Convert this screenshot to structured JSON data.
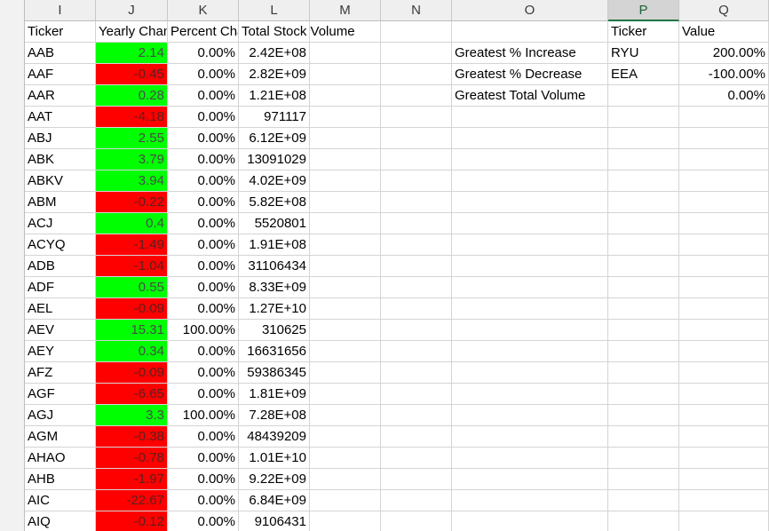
{
  "columns": [
    "I",
    "J",
    "K",
    "L",
    "M",
    "N",
    "O",
    "P",
    "Q"
  ],
  "selected_column": "P",
  "headers": {
    "ticker": "Ticker",
    "yearly_change": "Yearly Change",
    "percent_change": "Percent Change",
    "total_volume": "Total Stock Volume",
    "summary_ticker": "Ticker",
    "summary_value": "Value"
  },
  "rows": [
    {
      "ticker": "AAB",
      "change": "2.14",
      "sign": "pos",
      "percent": "0.00%",
      "volume": "2.42E+08"
    },
    {
      "ticker": "AAF",
      "change": "-0.45",
      "sign": "neg",
      "percent": "0.00%",
      "volume": "2.82E+09"
    },
    {
      "ticker": "AAR",
      "change": "0.28",
      "sign": "pos",
      "percent": "0.00%",
      "volume": "1.21E+08"
    },
    {
      "ticker": "AAT",
      "change": "-4.18",
      "sign": "neg",
      "percent": "0.00%",
      "volume": "971117"
    },
    {
      "ticker": "ABJ",
      "change": "2.55",
      "sign": "pos",
      "percent": "0.00%",
      "volume": "6.12E+09"
    },
    {
      "ticker": "ABK",
      "change": "3.79",
      "sign": "pos",
      "percent": "0.00%",
      "volume": "13091029"
    },
    {
      "ticker": "ABKV",
      "change": "3.94",
      "sign": "pos",
      "percent": "0.00%",
      "volume": "4.02E+09"
    },
    {
      "ticker": "ABM",
      "change": "-0.22",
      "sign": "neg",
      "percent": "0.00%",
      "volume": "5.82E+08"
    },
    {
      "ticker": "ACJ",
      "change": "0.4",
      "sign": "pos",
      "percent": "0.00%",
      "volume": "5520801"
    },
    {
      "ticker": "ACYQ",
      "change": "-1.49",
      "sign": "neg",
      "percent": "0.00%",
      "volume": "1.91E+08"
    },
    {
      "ticker": "ADB",
      "change": "-1.04",
      "sign": "neg",
      "percent": "0.00%",
      "volume": "31106434"
    },
    {
      "ticker": "ADF",
      "change": "0.55",
      "sign": "pos",
      "percent": "0.00%",
      "volume": "8.33E+09"
    },
    {
      "ticker": "AEL",
      "change": "-0.09",
      "sign": "neg",
      "percent": "0.00%",
      "volume": "1.27E+10"
    },
    {
      "ticker": "AEV",
      "change": "15.31",
      "sign": "pos",
      "percent": "100.00%",
      "volume": "310625"
    },
    {
      "ticker": "AEY",
      "change": "0.34",
      "sign": "pos",
      "percent": "0.00%",
      "volume": "16631656"
    },
    {
      "ticker": "AFZ",
      "change": "-0.09",
      "sign": "neg",
      "percent": "0.00%",
      "volume": "59386345"
    },
    {
      "ticker": "AGF",
      "change": "-6.65",
      "sign": "neg",
      "percent": "0.00%",
      "volume": "1.81E+09"
    },
    {
      "ticker": "AGJ",
      "change": "3.3",
      "sign": "pos",
      "percent": "100.00%",
      "volume": "7.28E+08"
    },
    {
      "ticker": "AGM",
      "change": "-0.38",
      "sign": "neg",
      "percent": "0.00%",
      "volume": "48439209"
    },
    {
      "ticker": "AHAO",
      "change": "-0.78",
      "sign": "neg",
      "percent": "0.00%",
      "volume": "1.01E+10"
    },
    {
      "ticker": "AHB",
      "change": "-1.97",
      "sign": "neg",
      "percent": "0.00%",
      "volume": "9.22E+09"
    },
    {
      "ticker": "AIC",
      "change": "-22.67",
      "sign": "neg",
      "percent": "0.00%",
      "volume": "6.84E+09"
    },
    {
      "ticker": "AIQ",
      "change": "-0.12",
      "sign": "neg",
      "percent": "0.00%",
      "volume": "9106431"
    }
  ],
  "summary": [
    {
      "label": "Greatest % Increase",
      "ticker": "RYU",
      "value": "200.00%"
    },
    {
      "label": "Greatest % Decrease",
      "ticker": "EEA",
      "value": "-100.00%"
    },
    {
      "label": "Greatest Total Volume",
      "ticker": "",
      "value": "0.00%"
    }
  ],
  "colors": {
    "positive_fill": "#00ff00",
    "negative_fill": "#ff0000",
    "selected_header_accent": "#217346"
  }
}
